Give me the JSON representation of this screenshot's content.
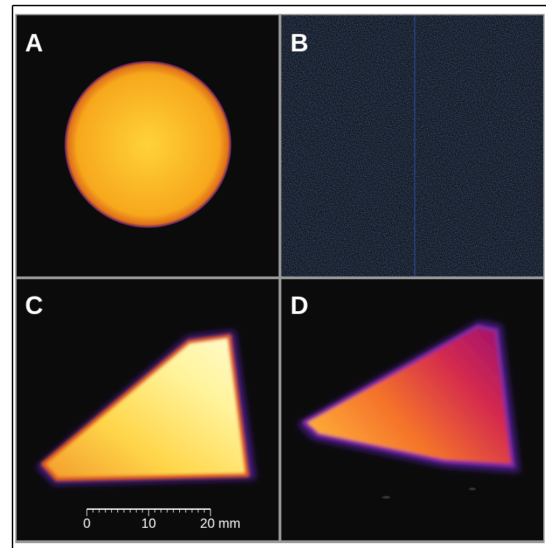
{
  "panels": [
    {
      "label": "A"
    },
    {
      "label": "B"
    },
    {
      "label": "C"
    },
    {
      "label": "D"
    }
  ],
  "scale_bar": {
    "labels": [
      "0",
      "10",
      "20 mm"
    ]
  }
}
